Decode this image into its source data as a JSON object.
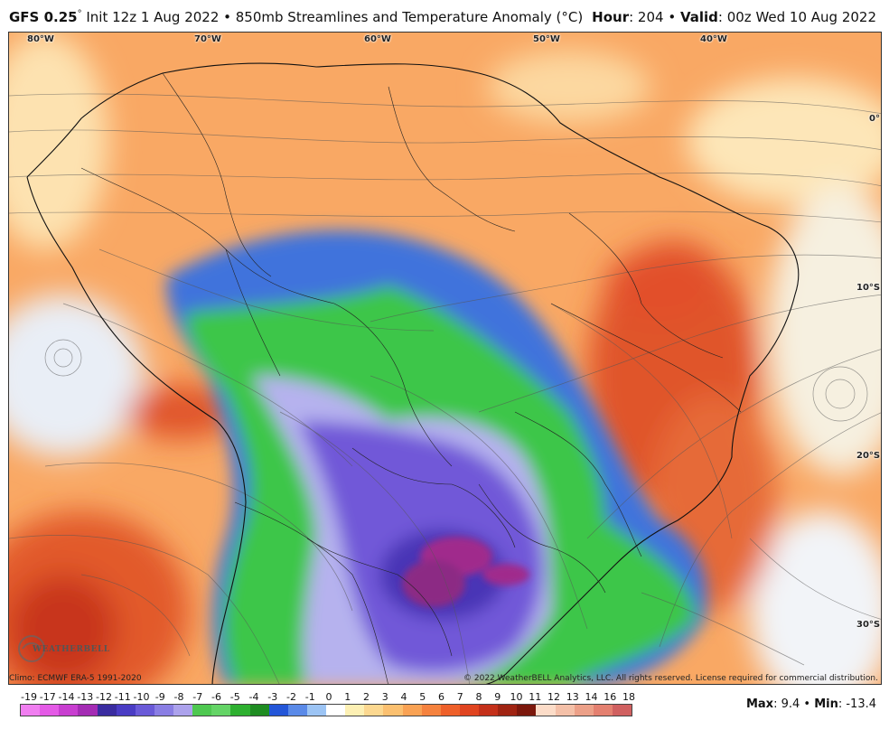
{
  "header": {
    "model": "GFS 0.25",
    "degree": "°",
    "init": " Init 12z 1 Aug 2022 • 850mb Streamlines and Temperature Anomaly (°C)",
    "hour_label": "Hour",
    "hour_value": ": 204 • ",
    "valid_label": "Valid",
    "valid_value": ": 00z Wed 10 Aug 2022"
  },
  "map": {
    "longitude_labels": [
      "80°W",
      "70°W",
      "60°W",
      "50°W",
      "40°W"
    ],
    "latitude_labels": [
      "0°",
      "10°S",
      "20°S",
      "30°S"
    ]
  },
  "footer": {
    "climo": "Climo: ECMWF ERA-5 1991-2020",
    "copyright": "© 2022 WeatherBELL Analytics, LLC. All rights reserved. License required for commercial distribution.",
    "logo": "WEATHERBELL"
  },
  "colorbar": {
    "ticks": [
      "-19",
      "-17",
      "-14",
      "-13",
      "-12",
      "-11",
      "-10",
      "-9",
      "-8",
      "-7",
      "-6",
      "-5",
      "-4",
      "-3",
      "-2",
      "-1",
      "0",
      "1",
      "2",
      "3",
      "4",
      "5",
      "6",
      "7",
      "8",
      "9",
      "10",
      "11",
      "12",
      "13",
      "14",
      "16",
      "18"
    ],
    "colors": [
      "#f07ef0",
      "#e45ae6",
      "#c83ed0",
      "#a42cb4",
      "#3a2ca0",
      "#4a3cc4",
      "#6a5ad8",
      "#8a7ee4",
      "#aca2ec",
      "#4ec850",
      "#64d466",
      "#2eb030",
      "#1f8c22",
      "#2456d8",
      "#5a8ae8",
      "#9cc4f4",
      "#ffffff",
      "#fdf0b4",
      "#fcd890",
      "#fbc070",
      "#f9a254",
      "#f5823e",
      "#ee602a",
      "#e04420",
      "#c4301a",
      "#a02412",
      "#7c180c",
      "#fcdcc8",
      "#f4c0a8",
      "#eca088",
      "#e48070",
      "#d06060"
    ]
  },
  "stats": {
    "max_label": "Max",
    "max_value": ": 9.4 • ",
    "min_label": "Min",
    "min_value": ": -13.4"
  }
}
